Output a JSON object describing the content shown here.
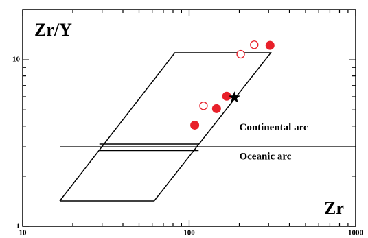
{
  "chart_data": {
    "type": "scatter",
    "xlabel": "Zr",
    "ylabel": "Zr/Y",
    "xscale": "log",
    "yscale": "log",
    "xlim": [
      10,
      1000
    ],
    "ylim": [
      1,
      20
    ],
    "xticks": [
      10,
      100,
      1000
    ],
    "yticks": [
      1,
      10
    ],
    "xminorticks": [
      20,
      30,
      40,
      50,
      60,
      70,
      80,
      90,
      200,
      300,
      400,
      500,
      600,
      700,
      800,
      900
    ],
    "yminorticks": [
      2,
      3,
      4,
      5,
      6,
      7,
      8,
      9
    ],
    "series": [
      {
        "marker": "filled-circle",
        "color": "#e8202a",
        "x": [
          108,
          146,
          168,
          306
        ],
        "values": [
          4.05,
          5.09,
          6.04,
          12.2
        ]
      },
      {
        "marker": "open-circle",
        "color": "#e8202a",
        "x": [
          122,
          204,
          246
        ],
        "values": [
          5.29,
          10.8,
          12.3
        ]
      },
      {
        "marker": "star",
        "color": "#000000",
        "x": [
          187
        ],
        "values": [
          5.93
        ]
      }
    ],
    "shapes": [
      {
        "x": [
          16.7,
          61.6,
          309,
          82,
          16.7
        ],
        "values": [
          1.42,
          1.42,
          11.0,
          11.0,
          1.42
        ]
      },
      {
        "x": [
          16.7,
          1000
        ],
        "values": [
          3.0,
          3.0
        ]
      },
      {
        "x": [
          28.9,
          114
        ],
        "values": [
          3.12,
          3.12
        ]
      },
      {
        "x": [
          28.9,
          114
        ],
        "values": [
          2.85,
          2.85
        ]
      }
    ],
    "annotations": [
      {
        "text": "Continental arc",
        "x": 200,
        "y": 3.9
      },
      {
        "text": "Oceanic arc",
        "x": 200,
        "y": 2.6
      }
    ]
  }
}
